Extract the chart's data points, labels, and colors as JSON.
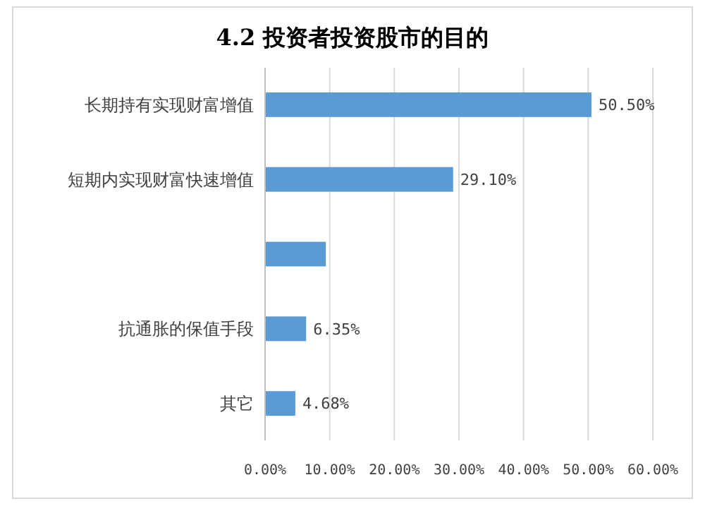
{
  "chart_data": {
    "type": "bar",
    "orientation": "horizontal",
    "title": "4.2 投资者投资股市的目的",
    "categories": [
      "长期持有实现财富增值",
      "短期内实现财富快速增值",
      null,
      "抗通胀的保值手段",
      "其它"
    ],
    "values": [
      50.5,
      29.1,
      9.4,
      6.35,
      4.68
    ],
    "value_labels": [
      "50.50%",
      "29.10%",
      null,
      "6.35%",
      "4.68%"
    ],
    "color": "#5b9bd5",
    "xlim": [
      0,
      60
    ],
    "xticks": [
      {
        "value": 0,
        "label": "0.00%"
      },
      {
        "value": 10,
        "label": "10.00%"
      },
      {
        "value": 20,
        "label": "20.00%"
      },
      {
        "value": 30,
        "label": "30.00%"
      },
      {
        "value": 40,
        "label": "40.00%"
      },
      {
        "value": 50,
        "label": "50.00%"
      },
      {
        "value": 60,
        "label": "60.00%"
      }
    ],
    "grid": "x"
  }
}
